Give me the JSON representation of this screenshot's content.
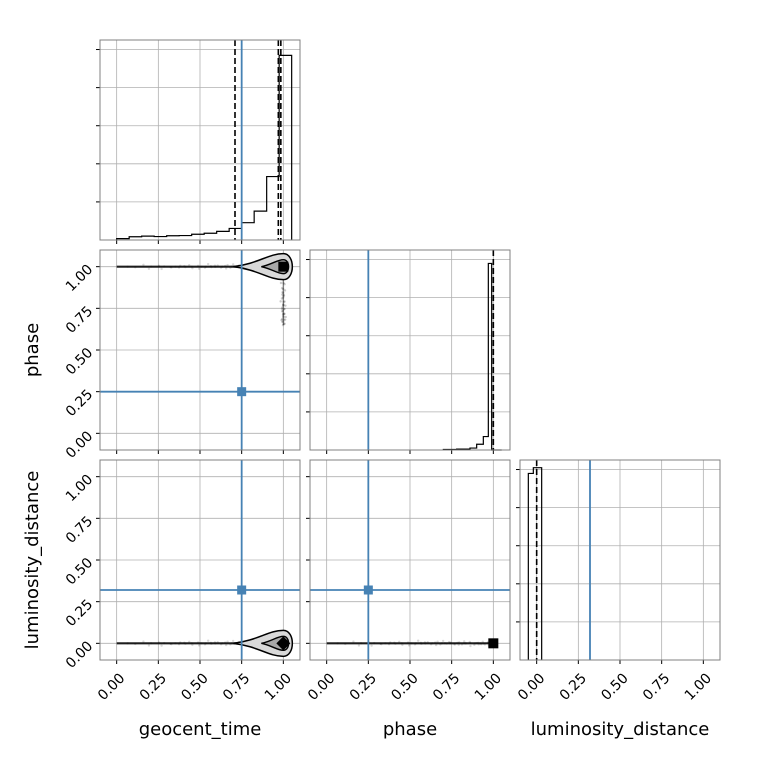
{
  "chart_data": {
    "type": "corner",
    "parameters": [
      "geocent_time",
      "phase",
      "luminosity_distance"
    ],
    "truth_color": "#4682b4",
    "truths": {
      "geocent_time": 0.75,
      "phase": 0.25,
      "luminosity_distance": 0.32
    },
    "tick_labels": [
      "0.00",
      "0.25",
      "0.50",
      "0.75",
      "1.00"
    ],
    "axis_range": [
      -0.1,
      1.1
    ],
    "grid": true,
    "marginals": {
      "geocent_time": {
        "bin_edges": [
          0.0,
          0.075,
          0.15,
          0.225,
          0.3,
          0.375,
          0.45,
          0.525,
          0.6,
          0.675,
          0.75,
          0.825,
          0.9,
          0.975,
          1.05
        ],
        "heights": [
          0.007,
          0.017,
          0.02,
          0.018,
          0.022,
          0.023,
          0.03,
          0.035,
          0.045,
          0.06,
          0.09,
          0.15,
          0.33,
          0.96
        ],
        "quantile_lines": [
          0.71,
          0.97,
          0.985
        ]
      },
      "phase": {
        "bin_edges": [
          0.7,
          0.78,
          0.86,
          0.9,
          0.94,
          0.97,
          0.99,
          1.05
        ],
        "heights": [
          0.003,
          0.005,
          0.01,
          0.03,
          0.07,
          0.97,
          0.0
        ],
        "quantile_lines": [
          1.0
        ]
      },
      "luminosity_distance": {
        "bin_edges": [
          -0.05,
          -0.02,
          0.03
        ],
        "heights": [
          0.97,
          1.0
        ],
        "quantile_lines": [
          0.0
        ]
      }
    },
    "panels_2d": [
      {
        "x": "geocent_time",
        "y": "phase",
        "dense_ridge": {
          "from": [
            0.0,
            1.0
          ],
          "to": [
            1.0,
            1.0
          ]
        },
        "tail": {
          "from": [
            1.0,
            1.0
          ],
          "to": [
            1.0,
            0.65
          ]
        },
        "mode": [
          1.0,
          1.0
        ]
      },
      {
        "x": "geocent_time",
        "y": "luminosity_distance",
        "dense_ridge": {
          "from": [
            0.0,
            0.0
          ],
          "to": [
            1.0,
            0.0
          ]
        },
        "mode": [
          1.0,
          0.0
        ]
      },
      {
        "x": "phase",
        "y": "luminosity_distance",
        "dense_ridge": {
          "from": [
            0.0,
            0.0
          ],
          "to": [
            1.0,
            0.0
          ]
        },
        "mode": [
          1.0,
          0.0
        ]
      }
    ]
  }
}
